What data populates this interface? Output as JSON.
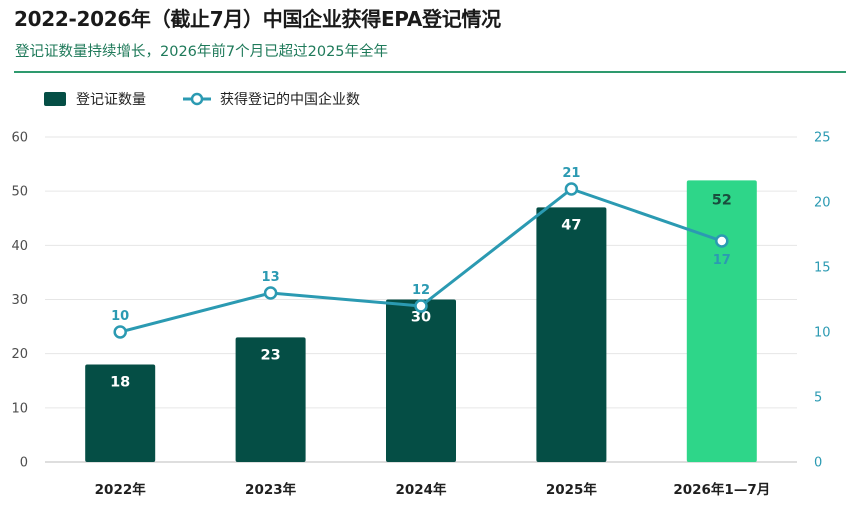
{
  "header": {
    "title": "2022-2026年（截止7月）中国企业获得EPA登记情况",
    "subtitle": "登记证数量持续增长，2026年前7个月已超过2025年全年"
  },
  "colors": {
    "bar": "#054e45",
    "bar_highlight": "#2ed689",
    "line": "#2b9ab2",
    "accent": "#2e9a6e"
  },
  "chart_data": {
    "type": "bar",
    "categories": [
      "2022年",
      "2023年",
      "2024年",
      "2025年",
      "2026年1—7月"
    ],
    "series": [
      {
        "name": "登记证数量",
        "type": "bar",
        "axis": "left",
        "values": [
          18,
          23,
          30,
          47,
          52
        ]
      },
      {
        "name": "获得登记的中国企业数",
        "type": "line",
        "axis": "right",
        "values": [
          10,
          13,
          12,
          21,
          17
        ]
      }
    ],
    "y_left": {
      "min": 0,
      "max": 60,
      "ticks": [
        0,
        10,
        20,
        30,
        40,
        50,
        60
      ]
    },
    "y_right": {
      "min": 0,
      "max": 25,
      "ticks": [
        0,
        5,
        10,
        15,
        20,
        25
      ]
    },
    "highlight_index": 4,
    "grid": true,
    "legend": "top-left"
  }
}
